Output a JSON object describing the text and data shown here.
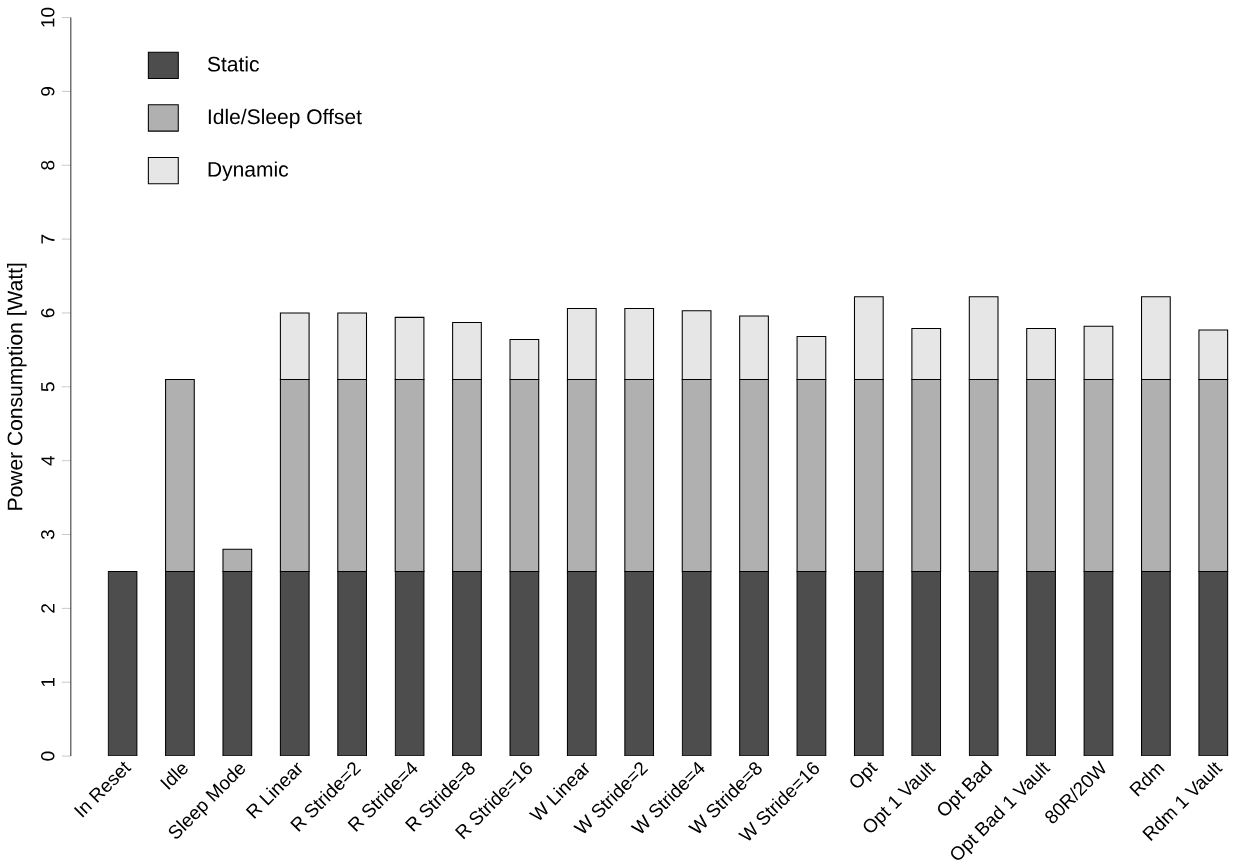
{
  "chart_data": {
    "type": "bar",
    "stacked": true,
    "ylabel": "Power Consumption [Watt]",
    "categories": [
      "In Reset",
      "Idle",
      "Sleep Mode",
      "R Linear",
      "R Stride=2",
      "R Stride=4",
      "R Stride=8",
      "R Stride=16",
      "W Linear",
      "W Stride=2",
      "W Stride=4",
      "W Stride=8",
      "W Stride=16",
      "Opt",
      "Opt 1 Vault",
      "Opt Bad",
      "Opt Bad 1 Vault",
      "80R/20W",
      "Rdm",
      "Rdm 1 Vault"
    ],
    "series": [
      {
        "name": "Static",
        "color": "#4d4d4d",
        "values": [
          2.5,
          2.5,
          2.5,
          2.5,
          2.5,
          2.5,
          2.5,
          2.5,
          2.5,
          2.5,
          2.5,
          2.5,
          2.5,
          2.5,
          2.5,
          2.5,
          2.5,
          2.5,
          2.5,
          2.5
        ]
      },
      {
        "name": "Idle/Sleep Offset",
        "color": "#b0b0b0",
        "values": [
          null,
          2.6,
          0.3,
          2.6,
          2.6,
          2.6,
          2.6,
          2.6,
          2.6,
          2.6,
          2.6,
          2.6,
          2.6,
          2.6,
          2.6,
          2.6,
          2.6,
          2.6,
          2.6,
          2.6
        ]
      },
      {
        "name": "Dynamic",
        "color": "#e6e6e6",
        "values": [
          null,
          null,
          null,
          0.9,
          0.9,
          0.84,
          0.77,
          0.54,
          0.96,
          0.96,
          0.93,
          0.86,
          0.58,
          1.12,
          0.69,
          1.12,
          0.69,
          0.72,
          1.12,
          0.67
        ]
      }
    ],
    "ylim": [
      0,
      10
    ],
    "yticks": [
      0,
      1,
      2,
      3,
      4,
      5,
      6,
      7,
      8,
      9,
      10
    ],
    "grid": false,
    "legend": "top left"
  }
}
